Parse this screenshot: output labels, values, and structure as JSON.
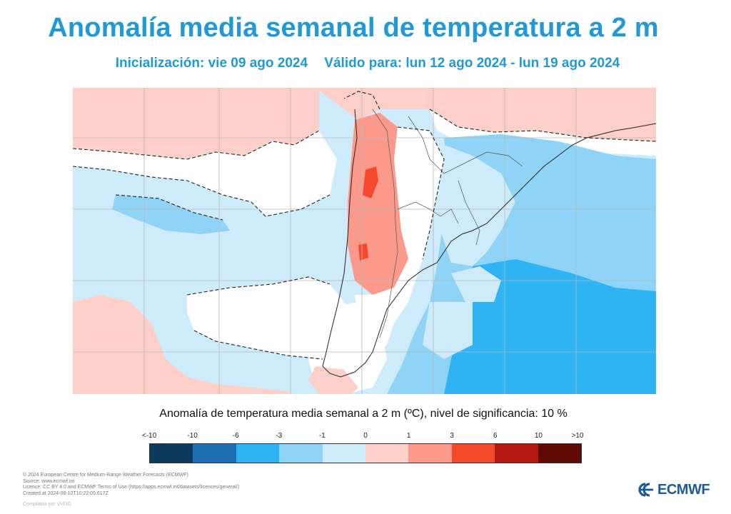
{
  "header": {
    "title": "Anomalía media semanal de temperatura a 2 m",
    "initialization": "Inicialización: vie 09 ago 2024",
    "valid_for": "Válido para: lun 12 ago 2024 - lun 19 ago 2024"
  },
  "legend": {
    "title": "Anomalía de temperatura media semanal a 2 m (ºC), nivel de significancia: 10 %",
    "labels": [
      "<-10",
      "-10",
      "-6",
      "-3",
      "-1",
      "0",
      "1",
      "3",
      "6",
      "10",
      ">10"
    ],
    "colors": [
      "#0b3a5c",
      "#1c6fb2",
      "#2fb3f2",
      "#8fd4f7",
      "#cdebfb",
      "#fcd0c9",
      "#fb9a8a",
      "#f5492c",
      "#b3180e",
      "#5f0a05"
    ]
  },
  "colors": {
    "title": "#1f9ad6",
    "ocean_warm": "#f8c2b9",
    "ocean_cold": "#bfe4f8",
    "deep_cold": "#5cb8ee",
    "neutral": "#ffffff"
  },
  "credits": {
    "line1": "© 2024 European Centre for Medium-Range Weather Forecasts (ECMWF)",
    "line2": "Source: www.ecmwf.int",
    "line3": "Licence: CC BY 4.0 and ECMWF Terms of Use (https://apps.ecmwf.int/datasets/licences/general/)",
    "line4": "Created at 2024-08-10T10:22:05.617Z",
    "compiled": "Compilado por VHDG"
  },
  "logo": {
    "text": "ECMWF",
    "icon": "ecmwf-logo-icon"
  }
}
